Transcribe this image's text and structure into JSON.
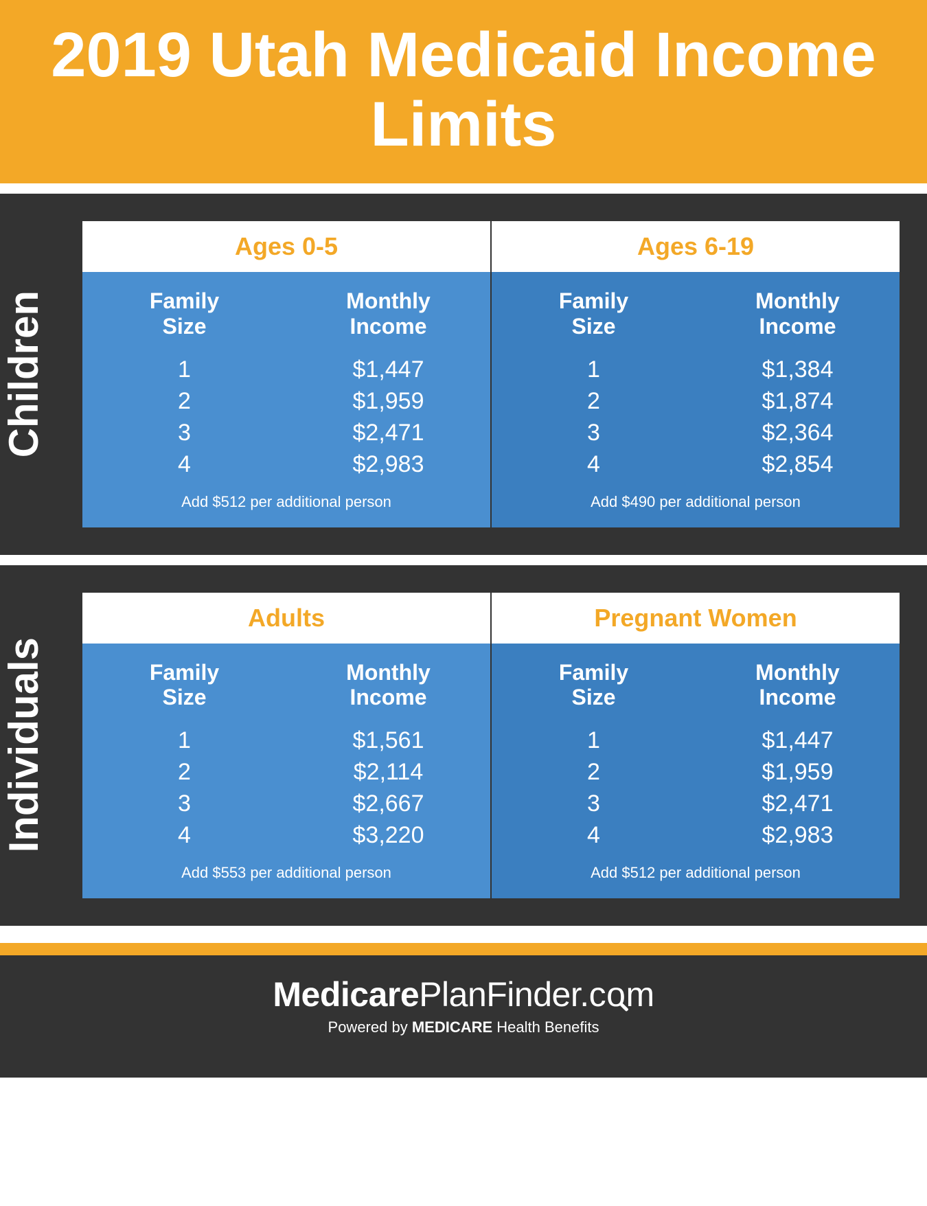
{
  "title": "2019 Utah Medicaid Income Limits",
  "colors": {
    "accent": "#f3a827",
    "panel_bg": "#333333",
    "table_bg_a": "#4a8fd0",
    "table_bg_b": "#3b7fc0",
    "text_light": "#ffffff"
  },
  "panels": [
    {
      "label": "Children",
      "tables": [
        {
          "header": "Ages 0-5",
          "col1_label": "Family Size",
          "col2_label": "Monthly Income",
          "sizes": [
            "1",
            "2",
            "3",
            "4"
          ],
          "incomes": [
            "$1,447",
            "$1,959",
            "$2,471",
            "$2,983"
          ],
          "footer": "Add $512 per additional person"
        },
        {
          "header": "Ages 6-19",
          "col1_label": "Family Size",
          "col2_label": "Monthly Income",
          "sizes": [
            "1",
            "2",
            "3",
            "4"
          ],
          "incomes": [
            "$1,384",
            "$1,874",
            "$2,364",
            "$2,854"
          ],
          "footer": "Add $490 per additional person"
        }
      ]
    },
    {
      "label": "Individuals",
      "tables": [
        {
          "header": "Adults",
          "col1_label": "Family Size",
          "col2_label": "Monthly Income",
          "sizes": [
            "1",
            "2",
            "3",
            "4"
          ],
          "incomes": [
            "$1,561",
            "$2,114",
            "$2,667",
            "$3,220"
          ],
          "footer": "Add $553 per additional person"
        },
        {
          "header": "Pregnant Women",
          "col1_label": "Family Size",
          "col2_label": "Monthly Income",
          "sizes": [
            "1",
            "2",
            "3",
            "4"
          ],
          "incomes": [
            "$1,447",
            "$1,959",
            "$2,471",
            "$2,983"
          ],
          "footer": "Add $512 per additional person"
        }
      ]
    }
  ],
  "brand": {
    "part1": "Medicare",
    "part2": "PlanFinder.c",
    "part3": "m",
    "tagline_prefix": "Powered by ",
    "tagline_bold": "MEDICARE",
    "tagline_suffix": " Health Benefits"
  }
}
